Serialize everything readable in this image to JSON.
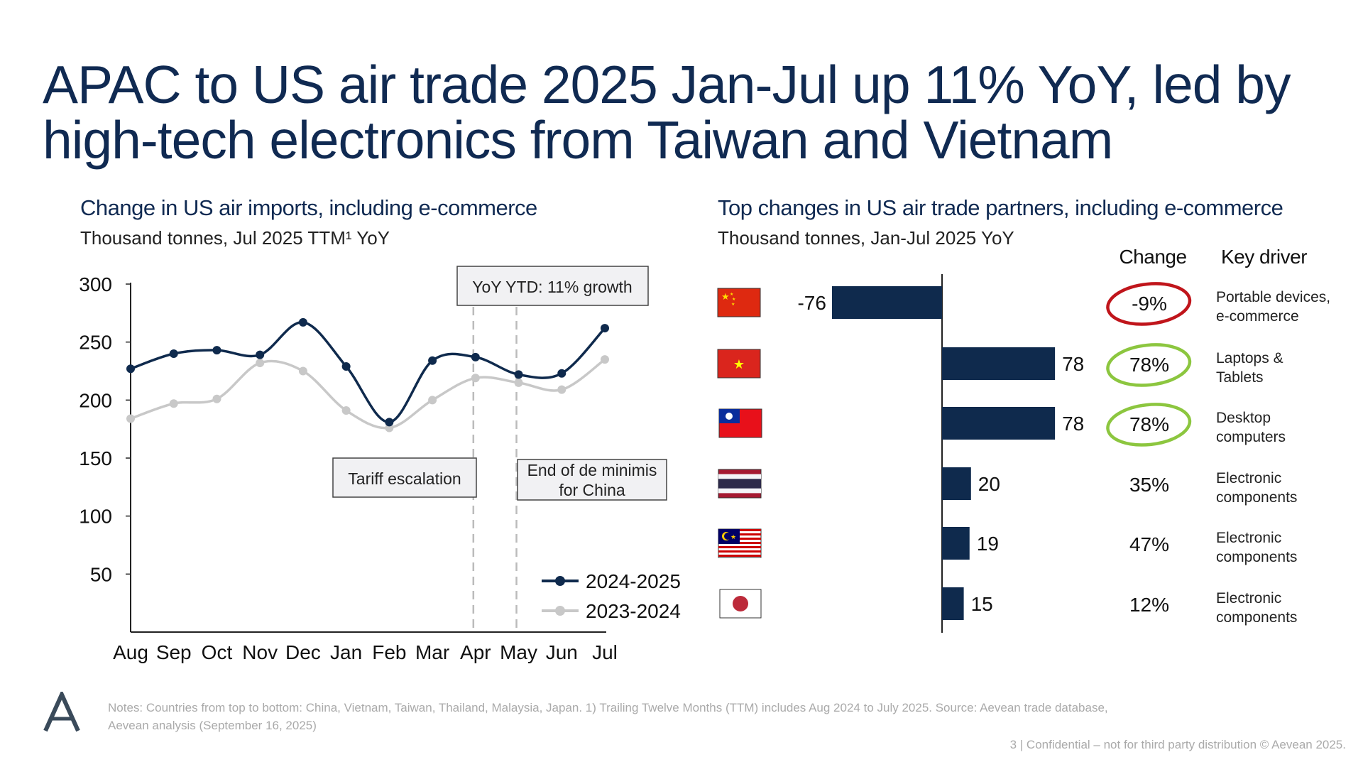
{
  "title": {
    "line1": "APAC to US air trade 2025 Jan-Jul up 11% YoY, led by",
    "line2": "high-tech electronics from Taiwan and Vietnam"
  },
  "chart_data": [
    {
      "type": "line",
      "title": "Change in US air imports, including e-commerce",
      "subtitle": "Thousand tonnes, Jul 2025 TTM¹ YoY",
      "categories": [
        "Aug",
        "Sep",
        "Oct",
        "Nov",
        "Dec",
        "Jan",
        "Feb",
        "Mar",
        "Apr",
        "May",
        "Jun",
        "Jul"
      ],
      "yticks": [
        "300",
        "250",
        "200",
        "150",
        "100",
        "50"
      ],
      "ytick_values": [
        300,
        250,
        200,
        150,
        100,
        50
      ],
      "ylim": [
        0,
        300
      ],
      "series": [
        {
          "name": "2024-2025",
          "color": "#0f2a4d",
          "values": [
            227,
            240,
            243,
            239,
            267,
            229,
            181,
            234,
            237,
            222,
            223,
            262
          ]
        },
        {
          "name": "2023-2024",
          "color": "#c8c8c8",
          "values": [
            184,
            197,
            201,
            232,
            225,
            191,
            176,
            200,
            219,
            215,
            209,
            235
          ]
        }
      ],
      "annotations": {
        "ytd": "YoY YTD: 11% growth",
        "tariff": "Tariff escalation",
        "deminimis_line1": "End of de minimis",
        "deminimis_line2": "for China"
      },
      "event_markers": [
        "Apr",
        "May"
      ],
      "legend_position": "bottom-right"
    },
    {
      "type": "bar",
      "orientation": "horizontal",
      "title": "Top changes in US air trade partners, including e-commerce",
      "subtitle": "Thousand tonnes, Jan-Jul 2025 YoY",
      "columns": {
        "change": "Change",
        "driver": "Key driver"
      },
      "bar_color": "#0f2a4d",
      "rows": [
        {
          "country": "China",
          "value": -76,
          "label": "-76",
          "change": "-9%",
          "highlight": "#c0151b",
          "driver1": "Portable devices,",
          "driver2": "e-commerce"
        },
        {
          "country": "Vietnam",
          "value": 78,
          "label": "78",
          "change": "78%",
          "highlight": "#8cc63f",
          "driver1": "Laptops &",
          "driver2": "Tablets"
        },
        {
          "country": "Taiwan",
          "value": 78,
          "label": "78",
          "change": "78%",
          "highlight": "#8cc63f",
          "driver1": "Desktop",
          "driver2": "computers"
        },
        {
          "country": "Thailand",
          "value": 20,
          "label": "20",
          "change": "35%",
          "highlight": "",
          "driver1": "Electronic",
          "driver2": "components"
        },
        {
          "country": "Malaysia",
          "value": 19,
          "label": "19",
          "change": "47%",
          "highlight": "",
          "driver1": "Electronic",
          "driver2": "components"
        },
        {
          "country": "Japan",
          "value": 15,
          "label": "15",
          "change": "12%",
          "highlight": "",
          "driver1": "Electronic",
          "driver2": "components"
        }
      ]
    }
  ],
  "footer": {
    "notes1": "Notes: Countries from top to bottom: China, Vietnam,  Taiwan, Thailand, Malaysia, Japan. 1) Trailing Twelve Months (TTM) includes Aug 2024 to July 2025. Source: Aevean trade database,",
    "notes2": "Aevean analysis (September 16, 2025)",
    "page": "3 | Confidential – not for third party distribution © Aevean 2025.",
    "logo": "A"
  }
}
